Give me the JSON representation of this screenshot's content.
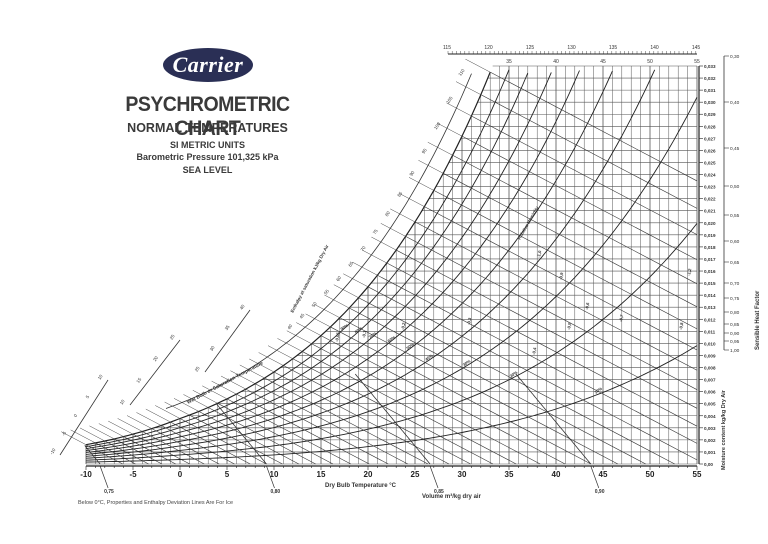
{
  "header": {
    "brand": "Carrier",
    "title": "PSYCHROMETRIC CHART",
    "subtitle": "NORMAL TEMPERATURES",
    "units": "SI METRIC UNITS",
    "pressure": "Barometric Pressure 101,325 kPa",
    "elevation": "SEA LEVEL"
  },
  "footnote": "Below 0°C,  Properties and Enthalpy Deviation Lines Are For Ice",
  "colors": {
    "brand_bg": "#2a2f55",
    "line": "#333333",
    "grid": "#555555",
    "text": "#222222"
  },
  "chart_data": {
    "type": "psychrometric",
    "title": "PSYCHROMETRIC CHART",
    "xlabel": "Dry Bulb Temperature  °C",
    "ylabel": "Moisture content  kg/kg Dry Air",
    "right_scale_label": "Sensible Heat Factor",
    "volume_label": "Volume m³/kg dry air",
    "enthalpy_label": "Enthalpy at saturation  kJ/kg Dry Air",
    "wet_bulb_label": "Wet Bulb or Saturation Temperature",
    "xlim": [
      -10,
      55
    ],
    "ylim": [
      0.0,
      0.033
    ],
    "x_ticks": [
      "-10",
      "-5",
      "0",
      "5",
      "10",
      "15",
      "20",
      "25",
      "30",
      "35",
      "40",
      "45",
      "50",
      "55"
    ],
    "y_ticks": [
      "0,00",
      "0,001",
      "0,002",
      "0,003",
      "0,004",
      "0,005",
      "0,006",
      "0,007",
      "0,008",
      "0,009",
      "0,010",
      "0,011",
      "0,012",
      "0,013",
      "0,014",
      "0,015",
      "0,016",
      "0,017",
      "0,018",
      "0,019",
      "0,020",
      "0,021",
      "0,022",
      "0,023",
      "0,024",
      "0,025",
      "0,026",
      "0,027",
      "0,028",
      "0,029",
      "0,030",
      "0,031",
      "0,032",
      "0,033"
    ],
    "top_dry_bulb_ticks": [
      "35",
      "40",
      "45",
      "50",
      "55"
    ],
    "top_enthalpy_ticks": [
      "115",
      "120",
      "125",
      "130",
      "135",
      "140",
      "145"
    ],
    "enthalpy_scale_ticks": [
      "40",
      "45",
      "50",
      "55",
      "60",
      "65",
      "70",
      "75",
      "80",
      "85",
      "90",
      "95",
      "100",
      "105",
      "110"
    ],
    "wet_bulb_scale_ticks": [
      "-10",
      "-5",
      "0",
      "5",
      "10",
      "15",
      "20",
      "25",
      "30",
      "35",
      "40"
    ],
    "volume_lines": [
      "0,75",
      "0,80",
      "0,85",
      "0,90"
    ],
    "relative_humidity_lines_pct": [
      10,
      20,
      30,
      40,
      50,
      60,
      70,
      80,
      90,
      100
    ],
    "rh_labels": [
      "10%",
      "20%",
      "30%",
      "40%",
      "50%",
      "60%",
      "70%",
      "80%",
      "90%",
      "Relative Humidity"
    ],
    "enthalpy_deviation_labels": [
      "-0,05",
      "-0,1",
      "-0,2",
      "-0,3",
      "-0,4",
      "-0,5",
      "-0,6",
      "-0,7",
      "-0,8",
      "-0,9",
      "-1,0",
      "-1,2"
    ],
    "sensible_heat_factor_ticks": [
      "0,30",
      "0,40",
      "0,45",
      "0,50",
      "0,55",
      "0,60",
      "0,65",
      "0,70",
      "0,75",
      "0,80",
      "0,85",
      "0,90",
      "0,95",
      "1,00"
    ],
    "grid": true
  }
}
